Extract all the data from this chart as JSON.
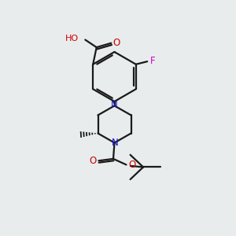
{
  "background_color": "#e8ecec",
  "bond_color": "#1a1a1a",
  "n_color": "#1414cc",
  "o_color": "#cc0000",
  "f_color": "#cc00cc",
  "line_width": 1.6,
  "fig_width": 3.0,
  "fig_height": 3.0,
  "dpi": 100,
  "xlim": [
    0,
    10
  ],
  "ylim": [
    0,
    10
  ]
}
